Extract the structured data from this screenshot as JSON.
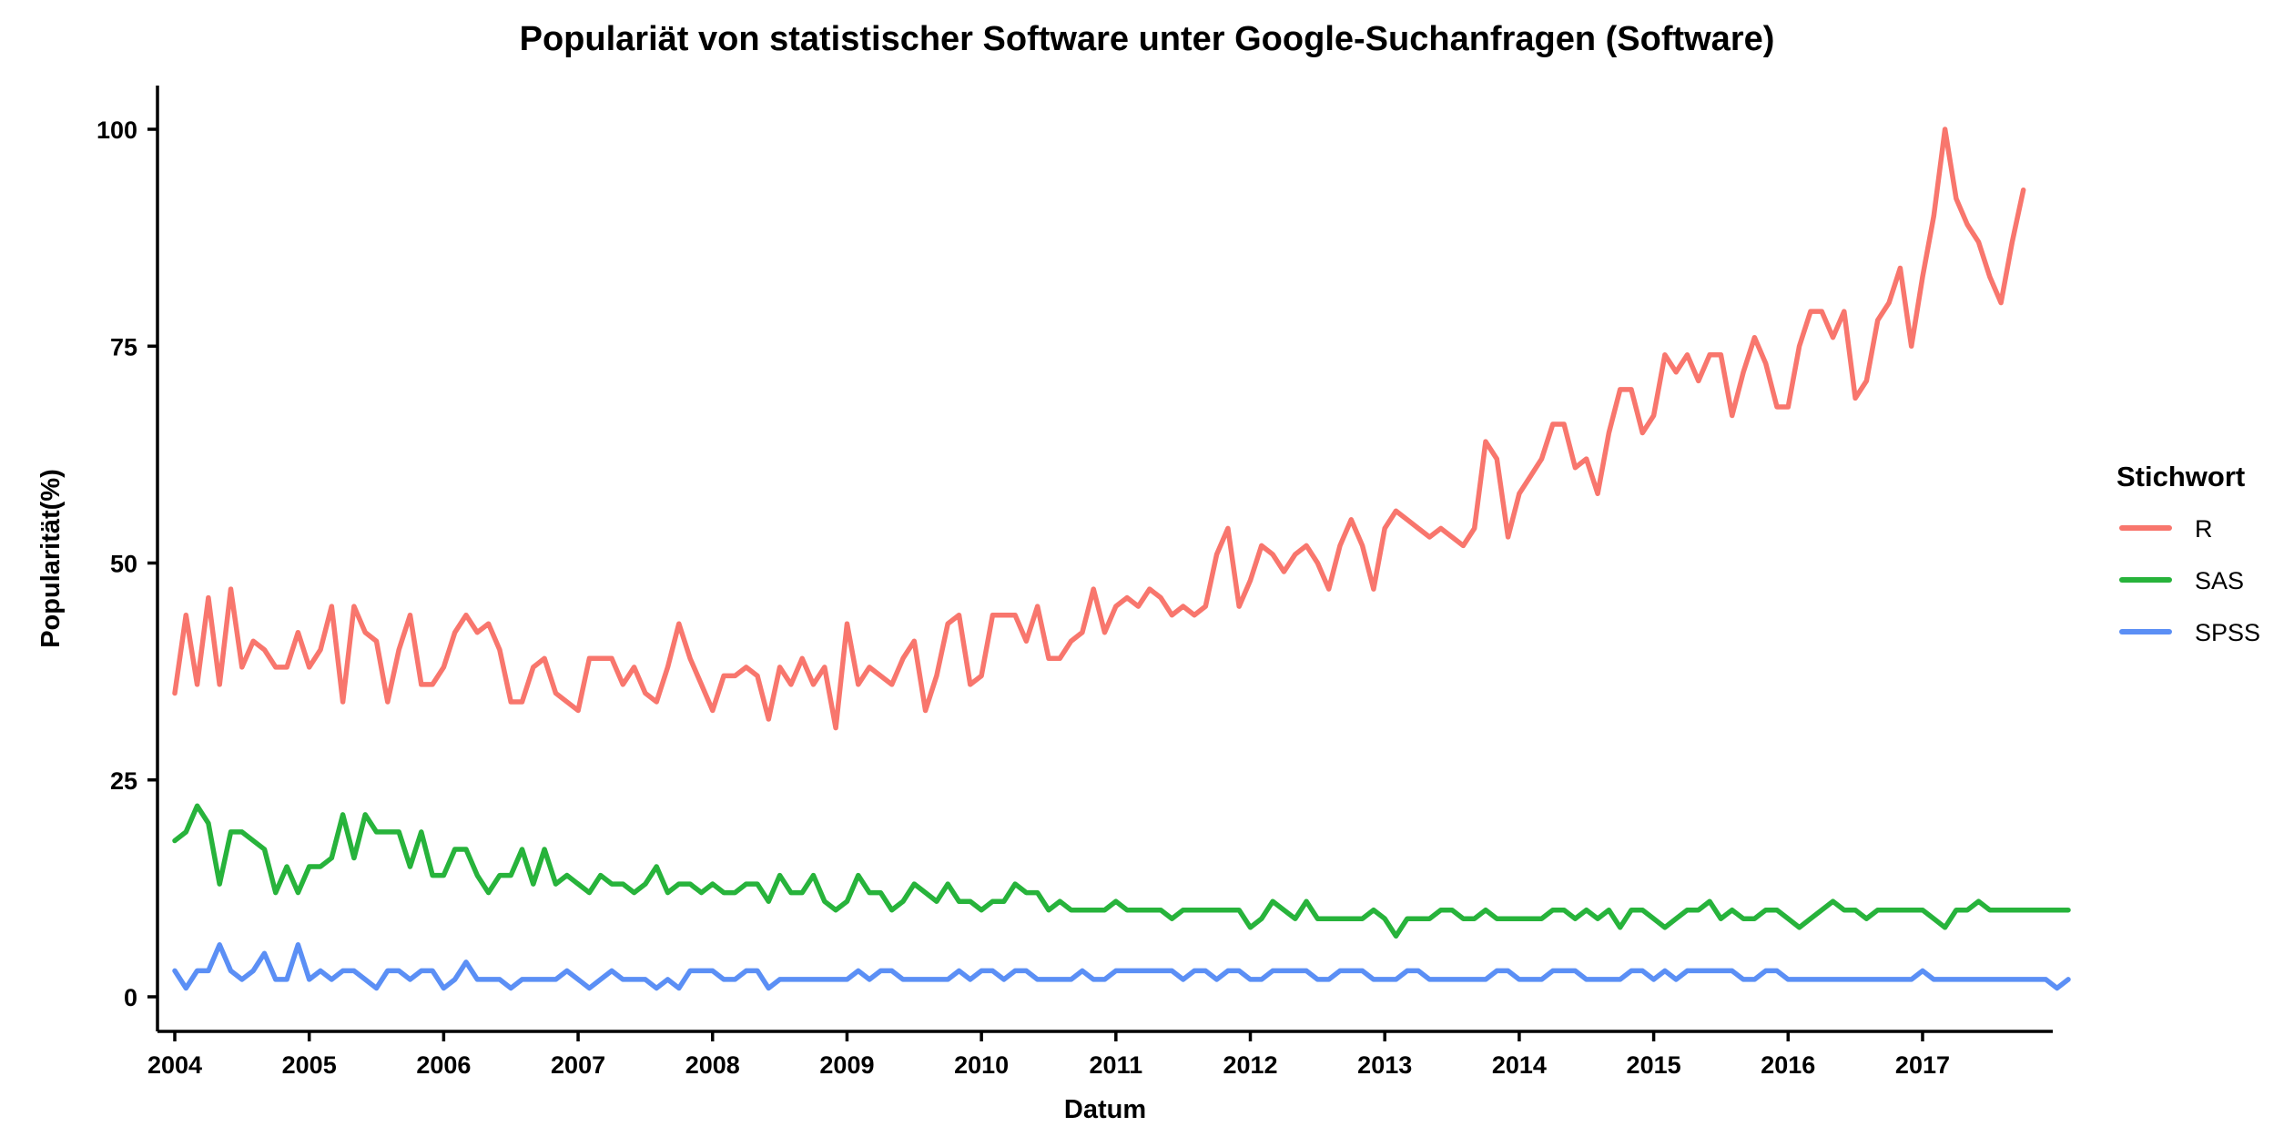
{
  "chart_data": {
    "type": "line",
    "title": "Populariät von statistischer Software unter Google-Suchanfragen (Software)",
    "xlabel": "Datum",
    "ylabel": "Popularität(%)",
    "xlim": [
      2004.0,
      2017.833
    ],
    "ylim": [
      0,
      100
    ],
    "x_ticks": [
      "2004",
      "2005",
      "2006",
      "2007",
      "2008",
      "2009",
      "2010",
      "2011",
      "2012",
      "2013",
      "2014",
      "2015",
      "2016",
      "2017"
    ],
    "y_ticks": [
      "0",
      "25",
      "50",
      "75",
      "100"
    ],
    "grid": false,
    "legend": {
      "title": "Stichwort",
      "position": "right"
    },
    "x_start": "2004-01",
    "x_step": "1 month",
    "series": [
      {
        "name": "R",
        "color": "#F8766D",
        "values": [
          35,
          44,
          36,
          46,
          36,
          47,
          38,
          41,
          40,
          38,
          38,
          42,
          38,
          40,
          45,
          34,
          45,
          42,
          41,
          34,
          40,
          44,
          36,
          36,
          38,
          42,
          44,
          42,
          43,
          40,
          34,
          34,
          38,
          39,
          35,
          34,
          33,
          39,
          39,
          39,
          36,
          38,
          35,
          34,
          38,
          43,
          39,
          36,
          33,
          37,
          37,
          38,
          37,
          32,
          38,
          36,
          39,
          36,
          38,
          31,
          43,
          36,
          38,
          37,
          36,
          39,
          41,
          33,
          37,
          43,
          44,
          36,
          37,
          44,
          44,
          44,
          41,
          45,
          39,
          39,
          41,
          42,
          47,
          42,
          45,
          46,
          45,
          47,
          46,
          44,
          45,
          44,
          45,
          51,
          54,
          45,
          48,
          52,
          51,
          49,
          51,
          52,
          50,
          47,
          52,
          55,
          52,
          47,
          54,
          56,
          55,
          54,
          53,
          54,
          53,
          52,
          54,
          64,
          62,
          53,
          58,
          60,
          62,
          66,
          66,
          61,
          62,
          58,
          65,
          70,
          70,
          65,
          67,
          74,
          72,
          74,
          71,
          74,
          74,
          67,
          72,
          76,
          73,
          68,
          68,
          75,
          79,
          79,
          76,
          79,
          69,
          71,
          78,
          80,
          84,
          75,
          83,
          90,
          100,
          92,
          89,
          87,
          83,
          80,
          87,
          93
        ]
      },
      {
        "name": "SAS",
        "color": "#27B33B",
        "values": [
          18,
          19,
          22,
          20,
          13,
          19,
          19,
          18,
          17,
          12,
          15,
          12,
          15,
          15,
          16,
          21,
          16,
          21,
          19,
          19,
          19,
          15,
          19,
          14,
          14,
          17,
          17,
          14,
          12,
          14,
          14,
          17,
          13,
          17,
          13,
          14,
          13,
          12,
          14,
          13,
          13,
          12,
          13,
          15,
          12,
          13,
          13,
          12,
          13,
          12,
          12,
          13,
          13,
          11,
          14,
          12,
          12,
          14,
          11,
          10,
          11,
          14,
          12,
          12,
          10,
          11,
          13,
          12,
          11,
          13,
          11,
          11,
          10,
          11,
          11,
          13,
          12,
          12,
          10,
          11,
          10,
          10,
          10,
          10,
          11,
          10,
          10,
          10,
          10,
          9,
          10,
          10,
          10,
          10,
          10,
          10,
          8,
          9,
          11,
          10,
          9,
          11,
          9,
          9,
          9,
          9,
          9,
          10,
          9,
          7,
          9,
          9,
          9,
          10,
          10,
          9,
          9,
          10,
          9,
          9,
          9,
          9,
          9,
          10,
          10,
          9,
          10,
          9,
          10,
          8,
          10,
          10,
          9,
          8,
          9,
          10,
          10,
          11,
          9,
          10,
          9,
          9,
          10,
          10,
          9,
          8,
          9,
          10,
          11,
          10,
          10,
          9,
          10,
          10,
          10,
          10,
          10,
          9,
          8,
          10,
          10,
          11,
          10,
          10,
          10,
          10,
          10,
          10,
          10,
          10
        ]
      },
      {
        "name": "SPSS",
        "color": "#5B8FF5",
        "values": [
          3,
          1,
          3,
          3,
          6,
          3,
          2,
          3,
          5,
          2,
          2,
          6,
          2,
          3,
          2,
          3,
          3,
          2,
          1,
          3,
          3,
          2,
          3,
          3,
          1,
          2,
          4,
          2,
          2,
          2,
          1,
          2,
          2,
          2,
          2,
          3,
          2,
          1,
          2,
          3,
          2,
          2,
          2,
          1,
          2,
          1,
          3,
          3,
          3,
          2,
          2,
          3,
          3,
          1,
          2,
          2,
          2,
          2,
          2,
          2,
          2,
          3,
          2,
          3,
          3,
          2,
          2,
          2,
          2,
          2,
          3,
          2,
          3,
          3,
          2,
          3,
          3,
          2,
          2,
          2,
          2,
          3,
          2,
          2,
          3,
          3,
          3,
          3,
          3,
          3,
          2,
          3,
          3,
          2,
          3,
          3,
          2,
          2,
          3,
          3,
          3,
          3,
          2,
          2,
          3,
          3,
          3,
          2,
          2,
          2,
          3,
          3,
          2,
          2,
          2,
          2,
          2,
          2,
          3,
          3,
          2,
          2,
          2,
          3,
          3,
          3,
          2,
          2,
          2,
          2,
          3,
          3,
          2,
          3,
          2,
          3,
          3,
          3,
          3,
          3,
          2,
          2,
          3,
          3,
          2,
          2,
          2,
          2,
          2,
          2,
          2,
          2,
          2,
          2,
          2,
          2,
          3,
          2,
          2,
          2,
          2,
          2,
          2,
          2,
          2,
          2,
          2,
          2,
          1,
          2
        ]
      }
    ]
  }
}
